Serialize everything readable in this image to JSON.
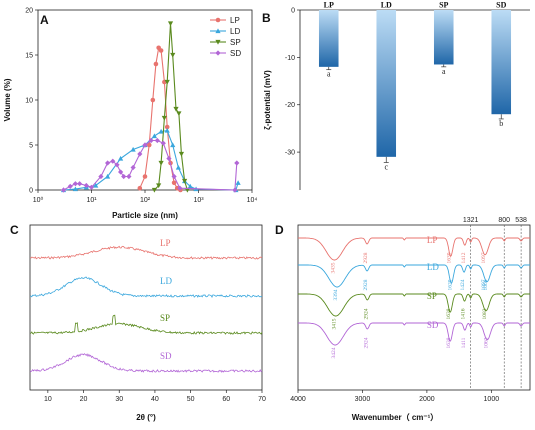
{
  "colors": {
    "LP": "#e8736e",
    "LD": "#3aa7dd",
    "SP": "#5a8a1e",
    "SD": "#b266d6",
    "bar_top": "#bcdcf5",
    "bar_bottom": "#1f66a8"
  },
  "chart_data": [
    {
      "panel": "A",
      "type": "line",
      "title": "",
      "xlabel": "Particle size (nm)",
      "ylabel": "Volume (%)",
      "xscale": "log",
      "xlim": [
        1,
        10000
      ],
      "ylim": [
        0,
        20
      ],
      "x_ticks": [
        1,
        10,
        100,
        1000,
        10000
      ],
      "x_tick_labels": [
        "10⁰",
        "10¹",
        "10²",
        "10³",
        "10⁴"
      ],
      "y_ticks": [
        0,
        5,
        10,
        15,
        20
      ],
      "legend": "top-right",
      "series": [
        {
          "name": "LP",
          "marker": "circle",
          "x": [
            80,
            100,
            120,
            140,
            160,
            180,
            200,
            230,
            260,
            300,
            350,
            400,
            460
          ],
          "y": [
            0.2,
            1.5,
            5,
            10,
            14,
            15.8,
            15.5,
            12,
            7,
            3,
            0.8,
            0.2,
            0
          ]
        },
        {
          "name": "LD",
          "marker": "triangle-up",
          "x": [
            3,
            5,
            8,
            12,
            20,
            35,
            60,
            100,
            150,
            200,
            260,
            330,
            420,
            550,
            700,
            900,
            5000,
            5500
          ],
          "y": [
            0,
            0.1,
            0.3,
            0.5,
            1.5,
            3.5,
            4.5,
            5,
            6,
            6.5,
            6.6,
            5,
            2.5,
            1,
            0.4,
            0.1,
            0,
            0.8
          ]
        },
        {
          "name": "SP",
          "marker": "triangle-down",
          "x": [
            150,
            180,
            200,
            230,
            260,
            300,
            330,
            380,
            430,
            480,
            550,
            620
          ],
          "y": [
            0,
            0.5,
            3,
            8,
            12,
            18.5,
            15,
            9,
            8.5,
            4,
            1,
            0
          ]
        },
        {
          "name": "SD",
          "marker": "diamond",
          "x": [
            3,
            4,
            5,
            6,
            8,
            10,
            15,
            20,
            25,
            30,
            35,
            40,
            50,
            60,
            80,
            100,
            130,
            170,
            220,
            280,
            350,
            450,
            4800,
            5200
          ],
          "y": [
            0,
            0.4,
            0.7,
            0.7,
            0.5,
            0.3,
            1.5,
            3,
            3.2,
            2.8,
            2,
            1.5,
            1.5,
            2.5,
            4,
            5,
            5.5,
            5.5,
            5.2,
            3.5,
            1.5,
            0.2,
            0,
            3
          ]
        }
      ]
    },
    {
      "panel": "B",
      "type": "bar",
      "ylabel": "ζ-potential (mV)",
      "categories": [
        "LP",
        "LD",
        "SP",
        "SD"
      ],
      "values": [
        -12,
        -31,
        -11.5,
        -22
      ],
      "errors": [
        0.6,
        1.2,
        0.5,
        1.0
      ],
      "significance": [
        "a",
        "c",
        "a",
        "b"
      ],
      "ylim": [
        -38,
        0
      ],
      "y_ticks": [
        0,
        -10,
        -20,
        -30
      ]
    },
    {
      "panel": "C",
      "type": "line",
      "xlabel": "2θ (°)",
      "xlim": [
        5,
        70
      ],
      "x_ticks": [
        10,
        20,
        30,
        40,
        50,
        60,
        70
      ],
      "series": [
        {
          "name": "LP",
          "hump_center": 30,
          "hump_width": 10,
          "hump_height": 0.6,
          "spikes": []
        },
        {
          "name": "LD",
          "hump_center": 20,
          "hump_width": 7,
          "hump_height": 1.0,
          "spikes": []
        },
        {
          "name": "SP",
          "hump_center": 30,
          "hump_width": 9,
          "hump_height": 0.5,
          "spikes": [
            18,
            28.5
          ]
        },
        {
          "name": "SD",
          "hump_center": 20,
          "hump_width": 7,
          "hump_height": 0.9,
          "spikes": []
        }
      ]
    },
    {
      "panel": "D",
      "type": "line",
      "xlabel": "Wavenumber（ cm⁻¹）",
      "xlim": [
        4000,
        400
      ],
      "x_ticks": [
        4000,
        3000,
        2000,
        1000
      ],
      "reference_lines": [
        1321,
        800,
        538
      ],
      "series": [
        {
          "name": "LP",
          "peaks": [
            3435,
            2928,
            1630,
            1412,
            1097
          ]
        },
        {
          "name": "LD",
          "peaks": [
            3394,
            2928,
            1620,
            1424,
            1068,
            1097
          ]
        },
        {
          "name": "SP",
          "peaks": [
            3415,
            2924,
            1638,
            1416,
            1083
          ]
        },
        {
          "name": "SD",
          "peaks": [
            3424,
            2924,
            1638,
            1411,
            1063
          ]
        }
      ]
    }
  ]
}
